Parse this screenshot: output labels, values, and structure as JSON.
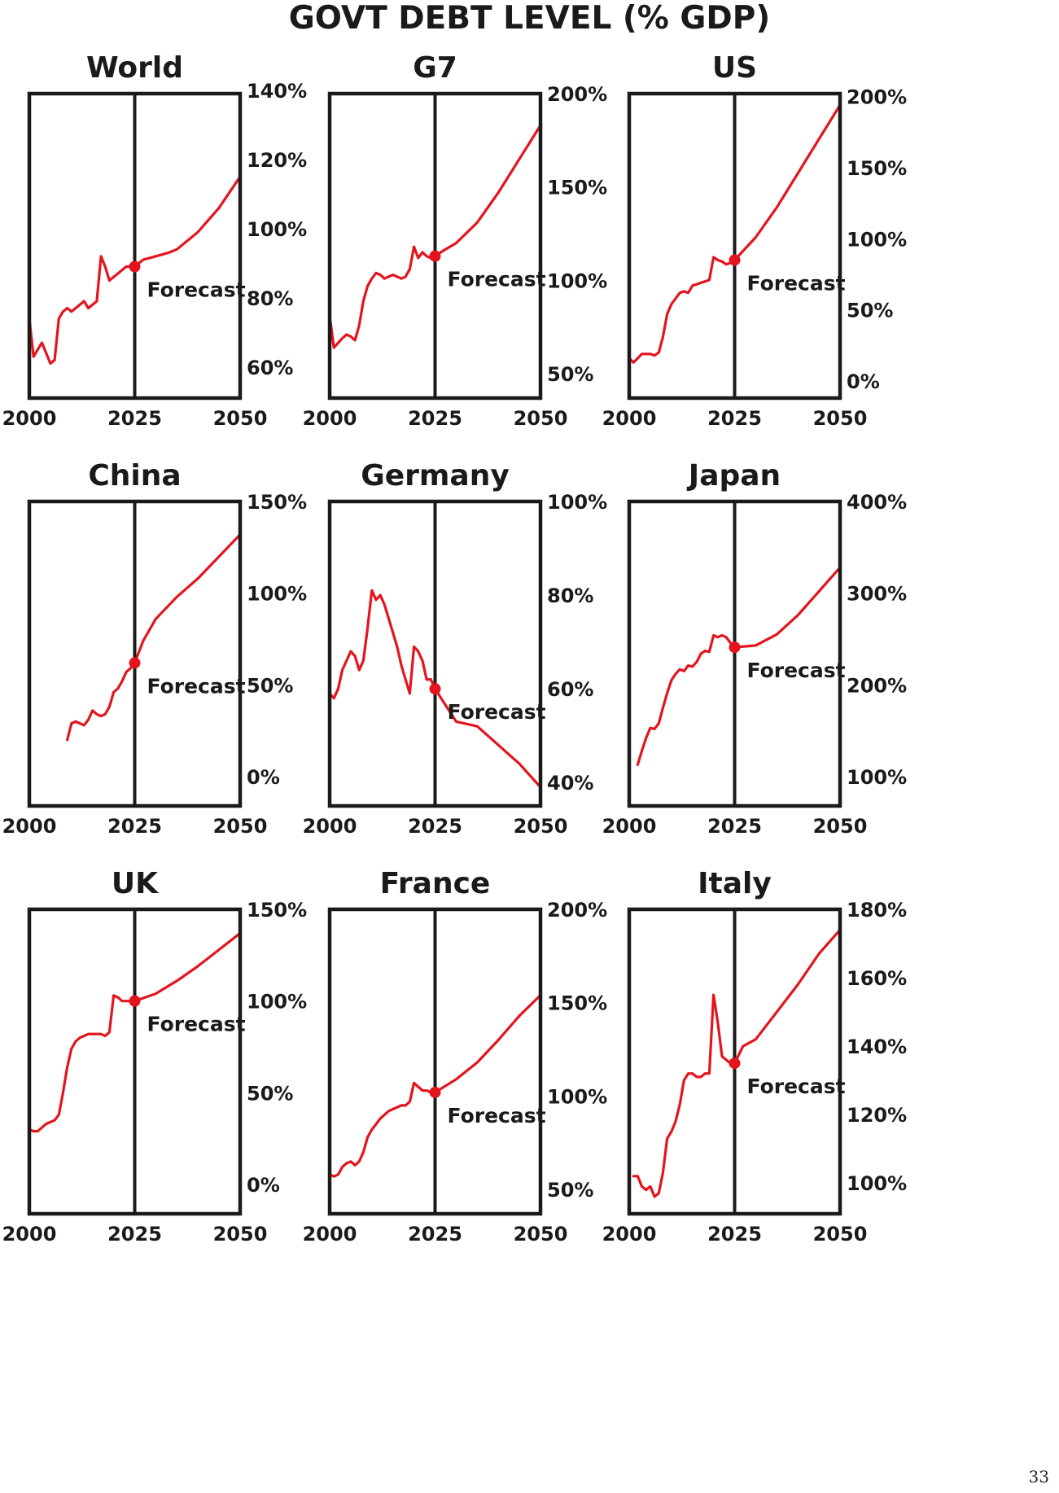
{
  "page": {
    "title": "GOVT DEBT LEVEL (% GDP)",
    "page_number": "33",
    "line_color": "#e4141e",
    "frame_color": "#1a1a1a"
  },
  "chart_data": [
    {
      "type": "line",
      "title": "World",
      "xlim": [
        2000,
        2050
      ],
      "ylim": [
        51,
        139
      ],
      "xticks": [
        {
          "v": 2000,
          "label": "2000"
        },
        {
          "v": 2025,
          "label": "2025"
        },
        {
          "v": 2050,
          "label": "2050"
        }
      ],
      "yticks": [
        {
          "v": 140,
          "label": "140%"
        },
        {
          "v": 120,
          "label": "120%"
        },
        {
          "v": 100,
          "label": "100%"
        },
        {
          "v": 80,
          "label": "80%"
        },
        {
          "v": 60,
          "label": "60%"
        }
      ],
      "forecast": {
        "x": 2025,
        "y": 89,
        "label": "Forecast"
      },
      "series": [
        {
          "x": [
            2000,
            2001,
            2003,
            2005,
            2006,
            2007,
            2008,
            2009,
            2010,
            2011,
            2012,
            2013,
            2014,
            2015,
            2016,
            2017,
            2018,
            2019,
            2020,
            2021,
            2022,
            2023,
            2024,
            2025,
            2027,
            2030,
            2033,
            2035,
            2040,
            2045,
            2050
          ],
          "y": [
            74,
            63,
            67,
            61,
            62,
            74,
            76,
            77,
            76,
            77,
            78,
            79,
            77,
            78,
            79,
            92,
            89,
            85,
            86,
            87,
            88,
            89,
            89,
            89,
            91,
            92,
            93,
            94,
            99,
            106,
            115
          ]
        }
      ]
    },
    {
      "type": "line",
      "title": "G7",
      "xlim": [
        2000,
        2050
      ],
      "ylim": [
        37,
        200
      ],
      "xticks": [
        {
          "v": 2000,
          "label": "2000"
        },
        {
          "v": 2025,
          "label": "2025"
        },
        {
          "v": 2050,
          "label": "2050"
        }
      ],
      "yticks": [
        {
          "v": 200,
          "label": "200%"
        },
        {
          "v": 150,
          "label": "150%"
        },
        {
          "v": 100,
          "label": "100%"
        },
        {
          "v": 50,
          "label": "50%"
        }
      ],
      "forecast": {
        "x": 2025,
        "y": 113,
        "label": "Forecast"
      },
      "series": [
        {
          "x": [
            2000,
            2001,
            2003,
            2004,
            2005,
            2006,
            2007,
            2008,
            2009,
            2010,
            2011,
            2012,
            2013,
            2014,
            2015,
            2016,
            2017,
            2018,
            2019,
            2020,
            2021,
            2022,
            2023,
            2024,
            2025,
            2027,
            2030,
            2035,
            2040,
            2045,
            2050
          ],
          "y": [
            81,
            64,
            69,
            71,
            70,
            68,
            76,
            89,
            97,
            101,
            104,
            103,
            101,
            102,
            103,
            102,
            101,
            102,
            106,
            118,
            112,
            115,
            113,
            112,
            113,
            116,
            120,
            131,
            147,
            165,
            183
          ]
        }
      ]
    },
    {
      "type": "line",
      "title": "US",
      "xlim": [
        2000,
        2050
      ],
      "ylim": [
        -12,
        202
      ],
      "xticks": [
        {
          "v": 2000,
          "label": "2000"
        },
        {
          "v": 2025,
          "label": "2025"
        },
        {
          "v": 2050,
          "label": "2050"
        }
      ],
      "yticks": [
        {
          "v": 200,
          "label": "200%"
        },
        {
          "v": 150,
          "label": "150%"
        },
        {
          "v": 100,
          "label": "100%"
        },
        {
          "v": 50,
          "label": "50%"
        },
        {
          "v": 0,
          "label": "0%"
        }
      ],
      "forecast": {
        "x": 2025,
        "y": 85,
        "label": "Forecast"
      },
      "series": [
        {
          "x": [
            2000,
            2001,
            2002,
            2003,
            2004,
            2005,
            2006,
            2007,
            2008,
            2009,
            2010,
            2011,
            2012,
            2013,
            2014,
            2015,
            2016,
            2017,
            2018,
            2019,
            2020,
            2021,
            2022,
            2023,
            2024,
            2025,
            2030,
            2035,
            2040,
            2045,
            2050
          ],
          "y": [
            16,
            13,
            16,
            19,
            19,
            19,
            18,
            20,
            31,
            47,
            54,
            58,
            62,
            63,
            62,
            67,
            68,
            69,
            70,
            71,
            87,
            85,
            84,
            82,
            83,
            85,
            101,
            122,
            146,
            170,
            194
          ]
        }
      ]
    },
    {
      "type": "line",
      "title": "China",
      "xlim": [
        2000,
        2050
      ],
      "ylim": [
        -16,
        150
      ],
      "xticks": [
        {
          "v": 2000,
          "label": "2000"
        },
        {
          "v": 2025,
          "label": "2025"
        },
        {
          "v": 2050,
          "label": "2050"
        }
      ],
      "yticks": [
        {
          "v": 150,
          "label": "150%"
        },
        {
          "v": 100,
          "label": "100%"
        },
        {
          "v": 50,
          "label": "50%"
        },
        {
          "v": 0,
          "label": "0%"
        }
      ],
      "forecast": {
        "x": 2025,
        "y": 62,
        "label": "Forecast"
      },
      "series": [
        {
          "x": [
            2009,
            2010,
            2011,
            2012,
            2013,
            2014,
            2015,
            2016,
            2017,
            2018,
            2019,
            2020,
            2021,
            2022,
            2023,
            2024,
            2025,
            2027,
            2030,
            2035,
            2040,
            2045,
            2050
          ],
          "y": [
            20,
            29,
            30,
            29,
            28,
            31,
            36,
            34,
            33,
            34,
            38,
            46,
            48,
            52,
            57,
            59,
            62,
            74,
            86,
            98,
            108,
            120,
            132
          ]
        }
      ]
    },
    {
      "type": "line",
      "title": "Germany",
      "xlim": [
        2000,
        2050
      ],
      "ylim": [
        35,
        100
      ],
      "xticks": [
        {
          "v": 2000,
          "label": "2000"
        },
        {
          "v": 2025,
          "label": "2025"
        },
        {
          "v": 2050,
          "label": "2050"
        }
      ],
      "yticks": [
        {
          "v": 100,
          "label": "100%"
        },
        {
          "v": 80,
          "label": "80%"
        },
        {
          "v": 60,
          "label": "60%"
        },
        {
          "v": 40,
          "label": "40%"
        }
      ],
      "forecast": {
        "x": 2025,
        "y": 60,
        "label": "Forecast"
      },
      "series": [
        {
          "x": [
            2000,
            2001,
            2002,
            2003,
            2004,
            2005,
            2006,
            2007,
            2008,
            2009,
            2010,
            2011,
            2012,
            2013,
            2014,
            2015,
            2016,
            2017,
            2018,
            2019,
            2020,
            2021,
            2022,
            2023,
            2024,
            2025,
            2030,
            2035,
            2040,
            2045,
            2050
          ],
          "y": [
            59,
            58,
            60,
            64,
            66,
            68,
            67,
            64,
            66,
            73,
            81,
            79,
            80,
            78,
            75,
            72,
            69,
            65,
            62,
            59,
            69,
            68,
            66,
            62,
            62,
            60,
            53,
            52,
            48,
            44,
            39
          ]
        }
      ]
    },
    {
      "type": "line",
      "title": "Japan",
      "xlim": [
        2000,
        2050
      ],
      "ylim": [
        68,
        400
      ],
      "xticks": [
        {
          "v": 2000,
          "label": "2000"
        },
        {
          "v": 2025,
          "label": "2025"
        },
        {
          "v": 2050,
          "label": "2050"
        }
      ],
      "yticks": [
        {
          "v": 400,
          "label": "400%"
        },
        {
          "v": 300,
          "label": "300%"
        },
        {
          "v": 200,
          "label": "200%"
        },
        {
          "v": 100,
          "label": "100%"
        }
      ],
      "forecast": {
        "x": 2025,
        "y": 241,
        "label": "Forecast"
      },
      "series": [
        {
          "x": [
            2002,
            2003,
            2004,
            2005,
            2006,
            2007,
            2008,
            2009,
            2010,
            2011,
            2012,
            2013,
            2014,
            2015,
            2016,
            2017,
            2018,
            2019,
            2020,
            2021,
            2022,
            2023,
            2024,
            2025,
            2030,
            2035,
            2040,
            2045,
            2050
          ],
          "y": [
            113,
            128,
            142,
            153,
            152,
            158,
            175,
            191,
            205,
            212,
            217,
            215,
            221,
            220,
            225,
            234,
            237,
            236,
            254,
            252,
            254,
            252,
            246,
            241,
            243,
            255,
            276,
            302,
            328
          ]
        }
      ]
    },
    {
      "type": "line",
      "title": "UK",
      "xlim": [
        2000,
        2050
      ],
      "ylim": [
        -16,
        150
      ],
      "xticks": [
        {
          "v": 2000,
          "label": "2000"
        },
        {
          "v": 2025,
          "label": "2025"
        },
        {
          "v": 2050,
          "label": "2050"
        }
      ],
      "yticks": [
        {
          "v": 150,
          "label": "150%"
        },
        {
          "v": 100,
          "label": "100%"
        },
        {
          "v": 50,
          "label": "50%"
        },
        {
          "v": 0,
          "label": "0%"
        }
      ],
      "forecast": {
        "x": 2025,
        "y": 100,
        "label": "Forecast"
      },
      "series": [
        {
          "x": [
            2000,
            2001,
            2002,
            2003,
            2004,
            2005,
            2006,
            2007,
            2008,
            2009,
            2010,
            2011,
            2012,
            2013,
            2014,
            2015,
            2016,
            2017,
            2018,
            2019,
            2020,
            2021,
            2022,
            2023,
            2024,
            2025,
            2030,
            2035,
            2040,
            2045,
            2050
          ],
          "y": [
            30,
            29,
            29,
            31,
            33,
            34,
            35,
            38,
            50,
            64,
            74,
            78,
            80,
            81,
            82,
            82,
            82,
            82,
            81,
            83,
            103,
            102,
            100,
            100,
            100,
            100,
            104,
            111,
            119,
            128,
            137
          ]
        }
      ]
    },
    {
      "type": "line",
      "title": "France",
      "xlim": [
        2000,
        2050
      ],
      "ylim": [
        37,
        200
      ],
      "xticks": [
        {
          "v": 2000,
          "label": "2000"
        },
        {
          "v": 2025,
          "label": "2025"
        },
        {
          "v": 2050,
          "label": "2050"
        }
      ],
      "yticks": [
        {
          "v": 200,
          "label": "200%"
        },
        {
          "v": 150,
          "label": "150%"
        },
        {
          "v": 100,
          "label": "100%"
        },
        {
          "v": 50,
          "label": "50%"
        }
      ],
      "forecast": {
        "x": 2025,
        "y": 102,
        "label": "Forecast"
      },
      "series": [
        {
          "x": [
            2000,
            2001,
            2002,
            2003,
            2004,
            2005,
            2006,
            2007,
            2008,
            2009,
            2010,
            2011,
            2012,
            2013,
            2014,
            2015,
            2016,
            2017,
            2018,
            2019,
            2020,
            2021,
            2022,
            2023,
            2024,
            2025,
            2030,
            2035,
            2040,
            2045,
            2050
          ],
          "y": [
            58,
            57,
            58,
            62,
            64,
            65,
            63,
            65,
            70,
            78,
            82,
            85,
            88,
            90,
            92,
            93,
            94,
            95,
            95,
            97,
            107,
            105,
            103,
            103,
            102,
            102,
            109,
            118,
            130,
            143,
            154
          ]
        }
      ]
    },
    {
      "type": "line",
      "title": "Italy",
      "xlim": [
        2000,
        2050
      ],
      "ylim": [
        91,
        180
      ],
      "xticks": [
        {
          "v": 2000,
          "label": "2000"
        },
        {
          "v": 2025,
          "label": "2025"
        },
        {
          "v": 2050,
          "label": "2050"
        }
      ],
      "yticks": [
        {
          "v": 180,
          "label": "180%"
        },
        {
          "v": 160,
          "label": "160%"
        },
        {
          "v": 140,
          "label": "140%"
        },
        {
          "v": 120,
          "label": "120%"
        },
        {
          "v": 100,
          "label": "100%"
        }
      ],
      "forecast": {
        "x": 2025,
        "y": 135,
        "label": "Forecast"
      },
      "series": [
        {
          "x": [
            2001,
            2002,
            2003,
            2004,
            2005,
            2006,
            2007,
            2008,
            2009,
            2010,
            2011,
            2012,
            2013,
            2014,
            2015,
            2016,
            2017,
            2018,
            2019,
            2020,
            2021,
            2022,
            2023,
            2024,
            2025,
            2027,
            2030,
            2035,
            2040,
            2045,
            2050
          ],
          "y": [
            102,
            102,
            99,
            98,
            99,
            96,
            97,
            103,
            113,
            115,
            118,
            123,
            130,
            132,
            132,
            131,
            131,
            132,
            132,
            155,
            147,
            137,
            136,
            135,
            135,
            140,
            142,
            150,
            158,
            167,
            174
          ]
        }
      ]
    }
  ]
}
